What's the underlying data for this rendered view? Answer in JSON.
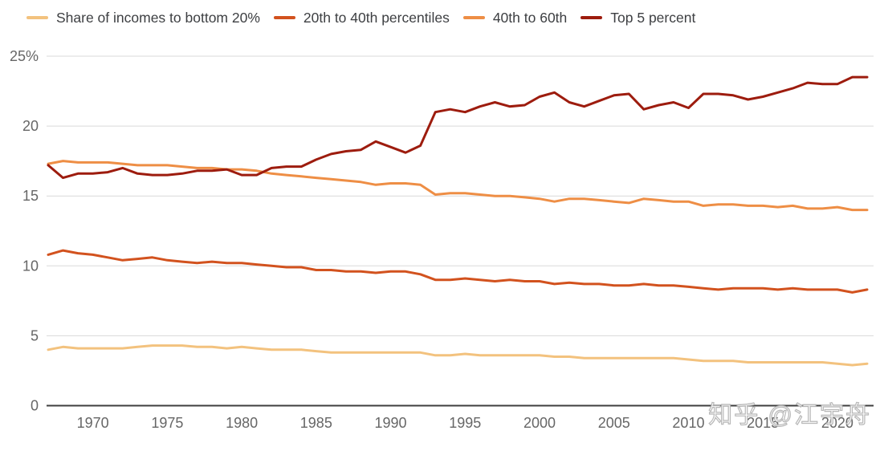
{
  "watermark": {
    "text": "知乎 @江宇舟"
  },
  "chart_data": {
    "type": "line",
    "title": "",
    "xlabel": "",
    "ylabel": "",
    "ylim": [
      0,
      25
    ],
    "grid": true,
    "legend_position": "top",
    "x": [
      1967,
      1968,
      1969,
      1970,
      1971,
      1972,
      1973,
      1974,
      1975,
      1976,
      1977,
      1978,
      1979,
      1980,
      1981,
      1982,
      1983,
      1984,
      1985,
      1986,
      1987,
      1988,
      1989,
      1990,
      1991,
      1992,
      1993,
      1994,
      1995,
      1996,
      1997,
      1998,
      1999,
      2000,
      2001,
      2002,
      2003,
      2004,
      2005,
      2006,
      2007,
      2008,
      2009,
      2010,
      2011,
      2012,
      2013,
      2014,
      2015,
      2016,
      2017,
      2018,
      2019,
      2020,
      2021,
      2022
    ],
    "xticks": [
      1970,
      1975,
      1980,
      1985,
      1990,
      1995,
      2000,
      2005,
      2010,
      2015,
      2020
    ],
    "yticks": [
      {
        "value": 25,
        "label": "25%"
      },
      {
        "value": 20,
        "label": "20"
      },
      {
        "value": 15,
        "label": "15"
      },
      {
        "value": 10,
        "label": "10"
      },
      {
        "value": 5,
        "label": "5"
      },
      {
        "value": 0,
        "label": "0"
      }
    ],
    "series": [
      {
        "name": "Share of incomes to bottom 20%",
        "color": "#f3c27e",
        "values": [
          4.0,
          4.2,
          4.1,
          4.1,
          4.1,
          4.1,
          4.2,
          4.3,
          4.3,
          4.3,
          4.2,
          4.2,
          4.1,
          4.2,
          4.1,
          4.0,
          4.0,
          4.0,
          3.9,
          3.8,
          3.8,
          3.8,
          3.8,
          3.8,
          3.8,
          3.8,
          3.6,
          3.6,
          3.7,
          3.6,
          3.6,
          3.6,
          3.6,
          3.6,
          3.5,
          3.5,
          3.4,
          3.4,
          3.4,
          3.4,
          3.4,
          3.4,
          3.4,
          3.3,
          3.2,
          3.2,
          3.2,
          3.1,
          3.1,
          3.1,
          3.1,
          3.1,
          3.1,
          3.0,
          2.9,
          3.0
        ]
      },
      {
        "name": "20th to 40th percentiles",
        "color": "#d2521e",
        "values": [
          10.8,
          11.1,
          10.9,
          10.8,
          10.6,
          10.4,
          10.5,
          10.6,
          10.4,
          10.3,
          10.2,
          10.3,
          10.2,
          10.2,
          10.1,
          10.0,
          9.9,
          9.9,
          9.7,
          9.7,
          9.6,
          9.6,
          9.5,
          9.6,
          9.6,
          9.4,
          9.0,
          9.0,
          9.1,
          9.0,
          8.9,
          9.0,
          8.9,
          8.9,
          8.7,
          8.8,
          8.7,
          8.7,
          8.6,
          8.6,
          8.7,
          8.6,
          8.6,
          8.5,
          8.4,
          8.3,
          8.4,
          8.4,
          8.4,
          8.3,
          8.4,
          8.3,
          8.3,
          8.3,
          8.1,
          8.3
        ]
      },
      {
        "name": "40th to 60th",
        "color": "#ee8e45",
        "values": [
          17.3,
          17.5,
          17.4,
          17.4,
          17.4,
          17.3,
          17.2,
          17.2,
          17.2,
          17.1,
          17.0,
          17.0,
          16.9,
          16.9,
          16.8,
          16.6,
          16.5,
          16.4,
          16.3,
          16.2,
          16.1,
          16.0,
          15.8,
          15.9,
          15.9,
          15.8,
          15.1,
          15.2,
          15.2,
          15.1,
          15.0,
          15.0,
          14.9,
          14.8,
          14.6,
          14.8,
          14.8,
          14.7,
          14.6,
          14.5,
          14.8,
          14.7,
          14.6,
          14.6,
          14.3,
          14.4,
          14.4,
          14.3,
          14.3,
          14.2,
          14.3,
          14.1,
          14.1,
          14.2,
          14.0,
          14.0
        ]
      },
      {
        "name": "Top 5 percent",
        "color": "#9d1c0e",
        "values": [
          17.2,
          16.3,
          16.6,
          16.6,
          16.7,
          17.0,
          16.6,
          16.5,
          16.5,
          16.6,
          16.8,
          16.8,
          16.9,
          16.5,
          16.5,
          17.0,
          17.1,
          17.1,
          17.6,
          18.0,
          18.2,
          18.3,
          18.9,
          18.5,
          18.1,
          18.6,
          21.0,
          21.2,
          21.0,
          21.4,
          21.7,
          21.4,
          21.5,
          22.1,
          22.4,
          21.7,
          21.4,
          21.8,
          22.2,
          22.3,
          21.2,
          21.5,
          21.7,
          21.3,
          22.3,
          22.3,
          22.2,
          21.9,
          22.1,
          22.4,
          22.7,
          23.1,
          23.0,
          23.0,
          23.5,
          23.5
        ]
      }
    ],
    "style": {
      "grid_color": "#d9d9d9",
      "axis_color": "#3f3f3f",
      "tick_label_color": "#666666",
      "line_width": 3
    }
  }
}
